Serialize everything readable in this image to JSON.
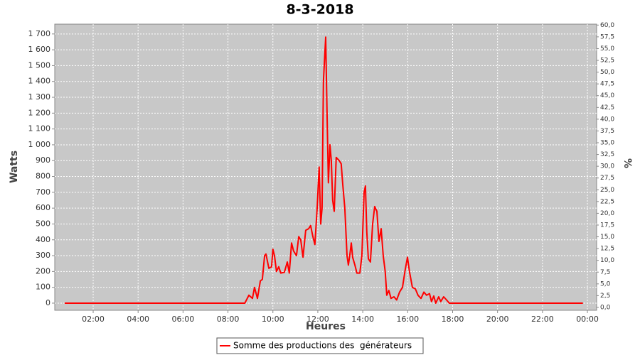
{
  "chart_data": {
    "type": "line",
    "title": "8-3-2018",
    "x_label": "Heures",
    "y_label": "Watts",
    "y2_label": "%",
    "x": [
      0.73,
      2,
      4,
      6,
      8,
      8.75,
      8.93,
      9.09,
      9.18,
      9.31,
      9.44,
      9.53,
      9.63,
      9.69,
      9.82,
      9.94,
      10.0,
      10.07,
      10.16,
      10.26,
      10.35,
      10.51,
      10.64,
      10.73,
      10.83,
      10.92,
      11.05,
      11.15,
      11.24,
      11.34,
      11.46,
      11.59,
      11.68,
      11.78,
      11.87,
      11.97,
      12.06,
      12.13,
      12.19,
      12.25,
      12.35,
      12.41,
      12.47,
      12.54,
      12.6,
      12.66,
      12.73,
      12.82,
      12.95,
      13.04,
      13.11,
      13.2,
      13.3,
      13.36,
      13.42,
      13.49,
      13.55,
      13.65,
      13.74,
      13.87,
      13.96,
      14.06,
      14.12,
      14.18,
      14.25,
      14.34,
      14.44,
      14.53,
      14.63,
      14.72,
      14.82,
      14.91,
      15.0,
      15.07,
      15.16,
      15.26,
      15.39,
      15.51,
      15.64,
      15.77,
      15.89,
      15.99,
      16.08,
      16.21,
      16.34,
      16.46,
      16.59,
      16.72,
      16.84,
      16.97,
      17.06,
      17.16,
      17.25,
      17.38,
      17.47,
      17.6,
      17.73,
      17.85,
      18.1,
      20,
      22,
      23.8
    ],
    "series": [
      {
        "name": "Somme des productions des  générateurs",
        "color": "#ff0000",
        "values": [
          0,
          0,
          0,
          0,
          0,
          0,
          50,
          30,
          100,
          30,
          140,
          150,
          300,
          310,
          220,
          230,
          340,
          300,
          200,
          230,
          190,
          195,
          260,
          190,
          380,
          330,
          300,
          420,
          400,
          290,
          460,
          470,
          490,
          420,
          370,
          600,
          860,
          500,
          600,
          1400,
          1680,
          1200,
          760,
          1000,
          900,
          650,
          580,
          920,
          900,
          880,
          750,
          600,
          300,
          240,
          300,
          380,
          290,
          240,
          190,
          190,
          300,
          700,
          740,
          450,
          280,
          260,
          500,
          610,
          580,
          390,
          470,
          300,
          200,
          50,
          80,
          30,
          40,
          20,
          70,
          100,
          210,
          290,
          200,
          100,
          90,
          50,
          30,
          70,
          50,
          60,
          10,
          45,
          0,
          40,
          10,
          40,
          20,
          0,
          0,
          0,
          0,
          0
        ]
      }
    ],
    "xlim": [
      0.29,
      24.41
    ],
    "xticks": [
      {
        "value": 2,
        "label": "02:00"
      },
      {
        "value": 4,
        "label": "04:00"
      },
      {
        "value": 6,
        "label": "06:00"
      },
      {
        "value": 8,
        "label": "08:00"
      },
      {
        "value": 10,
        "label": "10:00"
      },
      {
        "value": 12,
        "label": "12:00"
      },
      {
        "value": 14,
        "label": "14:00"
      },
      {
        "value": 16,
        "label": "16:00"
      },
      {
        "value": 18,
        "label": "18:00"
      },
      {
        "value": 20,
        "label": "20:00"
      },
      {
        "value": 22,
        "label": "22:00"
      },
      {
        "value": 24,
        "label": "00:00"
      }
    ],
    "ylim": [
      -45,
      1762
    ],
    "yticks": [
      0,
      100,
      200,
      300,
      400,
      500,
      600,
      700,
      800,
      900,
      {
        "value": 1000,
        "label": "1 000"
      },
      {
        "value": 1100,
        "label": "1 100"
      },
      {
        "value": 1200,
        "label": "1 200"
      },
      {
        "value": 1300,
        "label": "1 300"
      },
      {
        "value": 1400,
        "label": "1 400"
      },
      {
        "value": 1500,
        "label": "1 500"
      },
      {
        "value": 1600,
        "label": "1 600"
      },
      {
        "value": 1700,
        "label": "1 700"
      }
    ],
    "y2lim": [
      -0.61,
      60.2
    ],
    "y2ticks": [
      {
        "value": 0,
        "label": "0,0"
      },
      {
        "value": 2.5,
        "label": "2,5"
      },
      {
        "value": 5,
        "label": "5,0"
      },
      {
        "value": 7.5,
        "label": "7,5"
      },
      {
        "value": 10,
        "label": "10,0"
      },
      {
        "value": 12.5,
        "label": "12,5"
      },
      {
        "value": 15,
        "label": "15,0"
      },
      {
        "value": 17.5,
        "label": "17,5"
      },
      {
        "value": 20,
        "label": "20,0"
      },
      {
        "value": 22.5,
        "label": "22,5"
      },
      {
        "value": 25,
        "label": "25,0"
      },
      {
        "value": 27.5,
        "label": "27,5"
      },
      {
        "value": 30,
        "label": "30,0"
      },
      {
        "value": 32.5,
        "label": "32,5"
      },
      {
        "value": 35,
        "label": "35,0"
      },
      {
        "value": 37.5,
        "label": "37,5"
      },
      {
        "value": 40,
        "label": "40,0"
      },
      {
        "value": 42.5,
        "label": "42,5"
      },
      {
        "value": 45,
        "label": "45,0"
      },
      {
        "value": 47.5,
        "label": "47,5"
      },
      {
        "value": 50,
        "label": "50,0"
      },
      {
        "value": 52.5,
        "label": "52,5"
      },
      {
        "value": 55,
        "label": "55,0"
      },
      {
        "value": 57.5,
        "label": "57,5"
      },
      {
        "value": 60,
        "label": "60,0"
      }
    ],
    "grid": true,
    "legend": "bottom"
  }
}
